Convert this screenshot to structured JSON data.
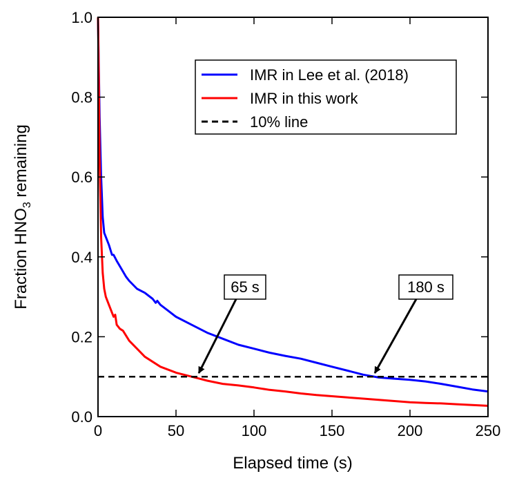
{
  "chart_data": {
    "type": "line",
    "xlabel": "Elapsed time (s)",
    "ylabel_prefix": "Fraction HNO",
    "ylabel_sub": "3",
    "ylabel_suffix": " remaining",
    "xlim": [
      0,
      250
    ],
    "ylim": [
      0,
      1.0
    ],
    "x_ticks": [
      0,
      50,
      100,
      150,
      200,
      250
    ],
    "x_tick_labels": [
      "0",
      "50",
      "100",
      "150",
      "200",
      "250"
    ],
    "y_ticks": [
      0,
      0.2,
      0.4,
      0.6,
      0.8,
      1.0
    ],
    "y_tick_labels": [
      "0.0",
      "0.2",
      "0.4",
      "0.6",
      "0.8",
      "1.0"
    ],
    "grid": false,
    "legend_position": "top-right",
    "series": [
      {
        "name": "IMR in Lee et al. (2018)",
        "color": "#0000ff",
        "style": "solid",
        "x": [
          0,
          1,
          2,
          3,
          4,
          5,
          7,
          9,
          10,
          12,
          15,
          18,
          20,
          25,
          30,
          35,
          37,
          38,
          40,
          45,
          50,
          60,
          70,
          80,
          90,
          100,
          110,
          120,
          130,
          140,
          150,
          160,
          170,
          180,
          190,
          200,
          210,
          220,
          230,
          240,
          250
        ],
        "y": [
          1.0,
          0.75,
          0.6,
          0.5,
          0.46,
          0.45,
          0.43,
          0.405,
          0.405,
          0.39,
          0.37,
          0.35,
          0.34,
          0.32,
          0.31,
          0.295,
          0.285,
          0.29,
          0.28,
          0.265,
          0.25,
          0.23,
          0.21,
          0.195,
          0.18,
          0.17,
          0.16,
          0.152,
          0.145,
          0.135,
          0.125,
          0.115,
          0.105,
          0.098,
          0.095,
          0.092,
          0.088,
          0.082,
          0.075,
          0.068,
          0.063
        ]
      },
      {
        "name": "IMR in this work",
        "color": "#ff0000",
        "style": "solid",
        "x": [
          0,
          0.5,
          1,
          2,
          3,
          4,
          5,
          7,
          9,
          10,
          11,
          12,
          14,
          16,
          20,
          25,
          30,
          40,
          50,
          60,
          65,
          70,
          80,
          90,
          100,
          110,
          120,
          130,
          140,
          150,
          160,
          170,
          180,
          190,
          200,
          210,
          220,
          230,
          240,
          250
        ],
        "y": [
          1.0,
          0.85,
          0.65,
          0.45,
          0.36,
          0.32,
          0.3,
          0.28,
          0.26,
          0.25,
          0.255,
          0.23,
          0.22,
          0.215,
          0.19,
          0.17,
          0.15,
          0.125,
          0.11,
          0.1,
          0.095,
          0.09,
          0.082,
          0.078,
          0.073,
          0.067,
          0.063,
          0.058,
          0.054,
          0.051,
          0.048,
          0.045,
          0.042,
          0.039,
          0.036,
          0.034,
          0.033,
          0.031,
          0.029,
          0.027
        ]
      },
      {
        "name": "10% line",
        "color": "#000000",
        "style": "dashed",
        "x": [
          0,
          250
        ],
        "y": [
          0.1,
          0.1
        ]
      }
    ],
    "annotations": [
      {
        "text": "65 s",
        "x": 65,
        "y": 0.1
      },
      {
        "text": "180 s",
        "x": 180,
        "y": 0.1
      }
    ]
  }
}
